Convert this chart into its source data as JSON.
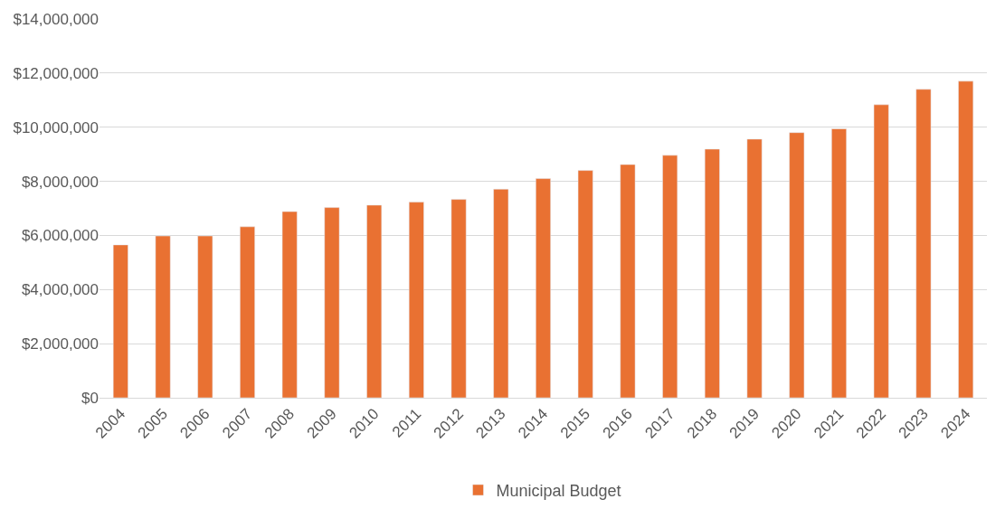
{
  "chart_data": {
    "type": "bar",
    "categories": [
      "2004",
      "2005",
      "2006",
      "2007",
      "2008",
      "2009",
      "2010",
      "2011",
      "2012",
      "2013",
      "2014",
      "2015",
      "2016",
      "2017",
      "2018",
      "2019",
      "2020",
      "2021",
      "2022",
      "2023",
      "2024"
    ],
    "series": [
      {
        "name": "Municipal Budget",
        "color": "#e97132",
        "values": [
          5650000,
          5980000,
          5980000,
          6320000,
          6880000,
          7030000,
          7120000,
          7230000,
          7330000,
          7710000,
          8100000,
          8400000,
          8620000,
          8960000,
          9190000,
          9560000,
          9800000,
          9940000,
          10830000,
          11400000,
          11700000
        ]
      }
    ],
    "ylim": [
      0,
      14000000
    ],
    "yticks": [
      {
        "value": 0,
        "label": "$0"
      },
      {
        "value": 2000000,
        "label": "$2,000,000"
      },
      {
        "value": 4000000,
        "label": "$4,000,000"
      },
      {
        "value": 6000000,
        "label": "$6,000,000"
      },
      {
        "value": 8000000,
        "label": "$8,000,000"
      },
      {
        "value": 10000000,
        "label": "$10,000,000"
      },
      {
        "value": 12000000,
        "label": "$12,000,000"
      },
      {
        "value": 14000000,
        "label": "$14,000,000"
      }
    ],
    "grid": "y",
    "legend": "bottom"
  }
}
